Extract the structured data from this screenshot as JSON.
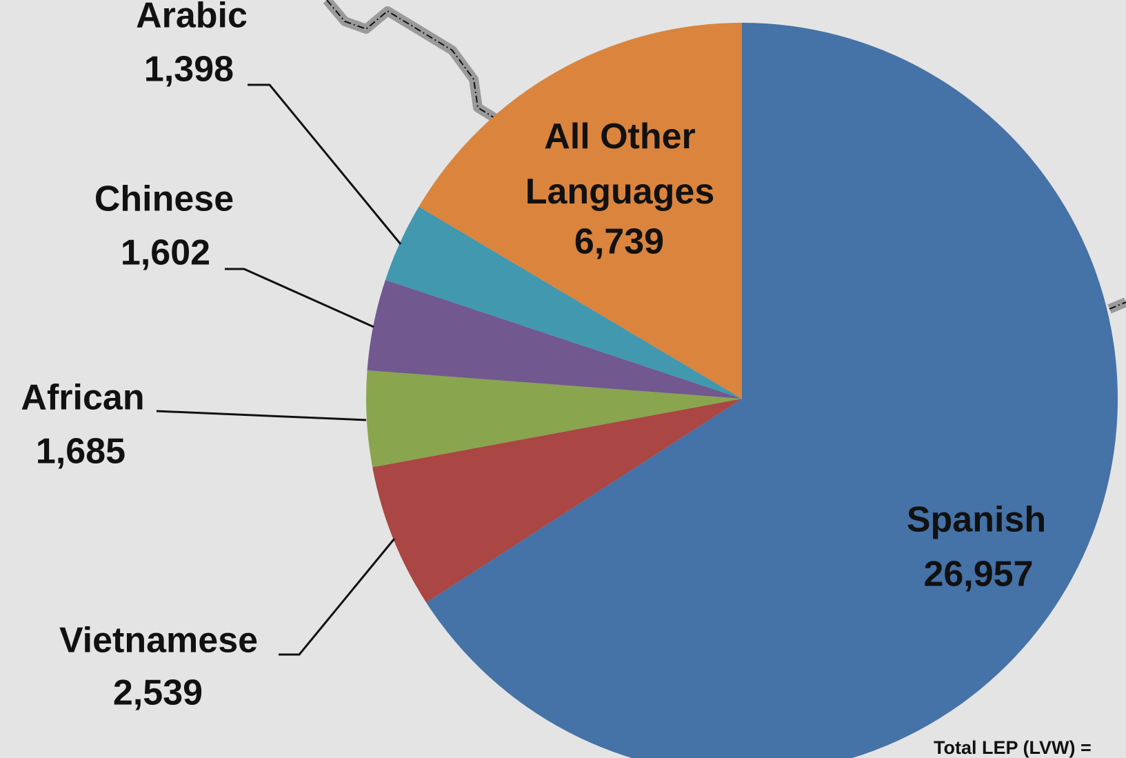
{
  "chart_data": {
    "type": "pie",
    "categories": [
      "Spanish",
      "Vietnamese",
      "African",
      "Chinese",
      "Arabic",
      "All Other Languages"
    ],
    "values": [
      26957,
      2539,
      1685,
      1602,
      1398,
      6739
    ],
    "value_labels": [
      "26,957",
      "2,539",
      "1,685",
      "1,602",
      "1,398",
      "6,739"
    ],
    "colors": [
      "#4572a7",
      "#aa4643",
      "#89a54e",
      "#71588f",
      "#4198af",
      "#db843d"
    ],
    "footnote": "Total LEP (LVW) ="
  }
}
